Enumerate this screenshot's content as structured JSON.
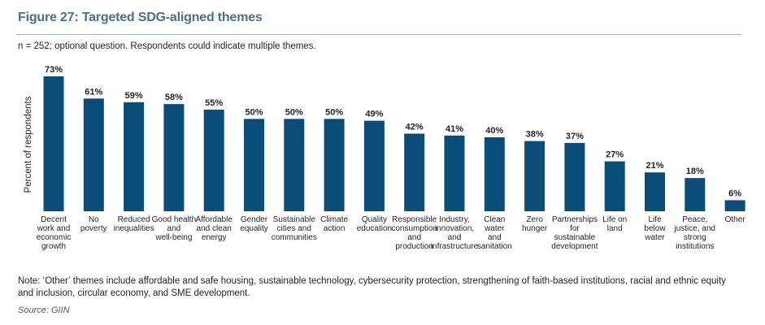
{
  "figure": {
    "title": "Figure 27: Targeted SDG-aligned themes",
    "subtitle": "n = 252; optional question. Respondents could indicate multiple themes.",
    "note": "Note: ‘Other’ themes include affordable and safe housing, sustainable technology, cybersecurity protection, strengthening of faith-based institutions, racial and ethnic equity and inclusion, circular economy, and SME development.",
    "source": "Source: GIIN"
  },
  "colors": {
    "bar": "#0a4d78",
    "title": "#4a6f8a",
    "text": "#231f20"
  },
  "chart_data": {
    "type": "bar",
    "ylabel": "Percent of respondents",
    "xlabel": "",
    "ylim": [
      0,
      73
    ],
    "grid": false,
    "value_suffix": "%",
    "categories": [
      [
        "Decent",
        "work and",
        "economic",
        "growth"
      ],
      [
        "No",
        "poverty"
      ],
      [
        "Reduced",
        "inequalities"
      ],
      [
        "Good health",
        "and",
        "well-being"
      ],
      [
        "Affordable",
        "and clean",
        "energy"
      ],
      [
        "Gender",
        "equality"
      ],
      [
        "Sustainable",
        "cities and",
        "communities"
      ],
      [
        "Climate",
        "action"
      ],
      [
        "Quality",
        "education"
      ],
      [
        "Responsible",
        "consumption",
        "and",
        "production"
      ],
      [
        "Industry,",
        "innovation,",
        "and",
        "infrastructure"
      ],
      [
        "Clean",
        "water",
        "and",
        "sanitation"
      ],
      [
        "Zero",
        "hunger"
      ],
      [
        "Partnerships",
        "for",
        "sustainable",
        "development"
      ],
      [
        "Life on",
        "land"
      ],
      [
        "Life",
        "below",
        "water"
      ],
      [
        "Peace,",
        "justice, and",
        "strong",
        "institutions"
      ],
      [
        "Other"
      ]
    ],
    "values": [
      73,
      61,
      59,
      58,
      55,
      50,
      50,
      50,
      49,
      42,
      41,
      40,
      38,
      37,
      27,
      21,
      18,
      6
    ]
  }
}
